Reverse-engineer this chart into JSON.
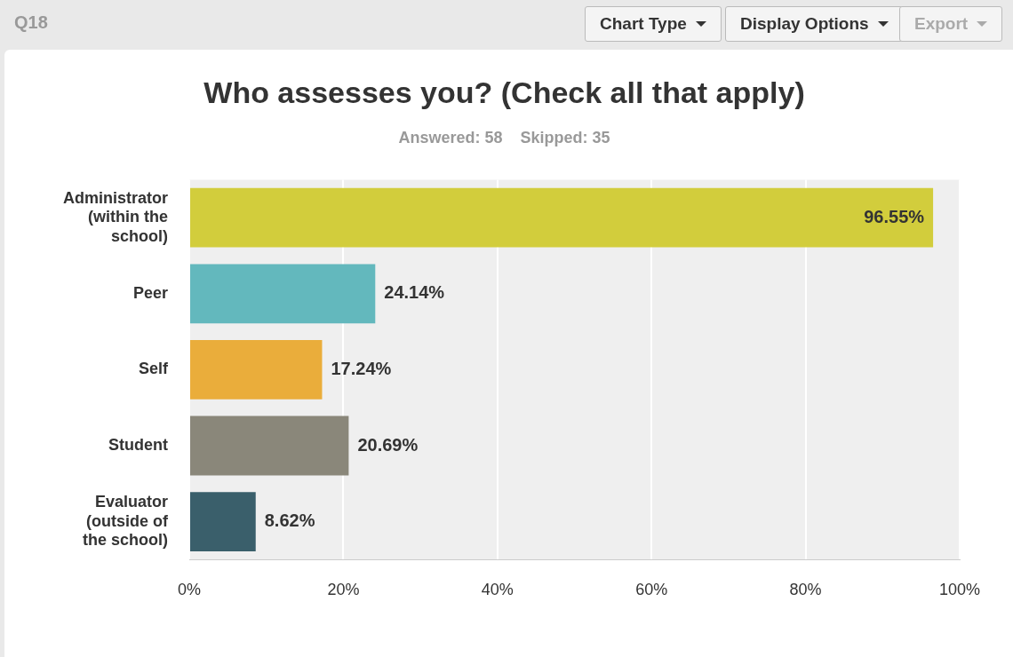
{
  "chart_data": {
    "type": "bar",
    "orientation": "horizontal",
    "title": "Who assesses you? (Check all that apply)",
    "subtitle": "Answered: 58    Skipped: 35",
    "categories": [
      "Administrator (within the school)",
      "Peer",
      "Self",
      "Student",
      "Evaluator (outside of the school)"
    ],
    "values": [
      96.55,
      24.14,
      17.24,
      20.69,
      8.62
    ],
    "colors": [
      "#d2cd3c",
      "#63b8bd",
      "#eaad3b",
      "#8a877a",
      "#3a5f6b"
    ],
    "value_labels": [
      "96.55%",
      "24.14%",
      "17.24%",
      "20.69%",
      "8.62%"
    ],
    "xlim": [
      0,
      100
    ],
    "xticks": [
      {
        "value": 0,
        "label": "0%"
      },
      {
        "value": 20,
        "label": "20%"
      },
      {
        "value": 40,
        "label": "40%"
      },
      {
        "value": 60,
        "label": "60%"
      },
      {
        "value": 80,
        "label": "80%"
      },
      {
        "value": 100,
        "label": "100%"
      }
    ],
    "grid": "x",
    "legend": false,
    "annotations": [
      "Q18",
      "Chart Type",
      "Display Options",
      "Export"
    ]
  }
}
